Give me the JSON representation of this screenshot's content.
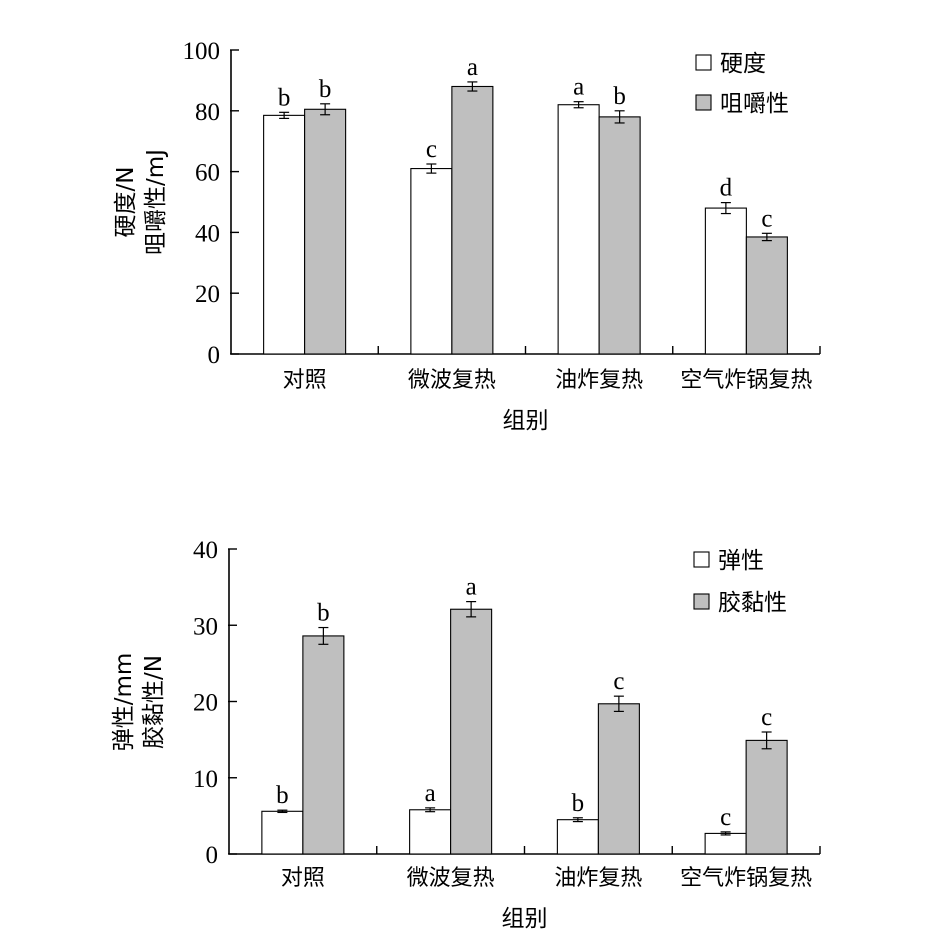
{
  "chart_data": [
    {
      "type": "bar",
      "categories": [
        "对照",
        "微波复热",
        "油炸复热",
        "空气炸锅复热"
      ],
      "xlabel": "组别",
      "ylabel": [
        "硬度/N",
        "咀嚼性/mJ"
      ],
      "ylim": [
        0,
        100
      ],
      "yticks": [
        0,
        20,
        40,
        60,
        80,
        100
      ],
      "legend_position": "top-right",
      "series": [
        {
          "name": "硬度",
          "color": "#ffffff",
          "values": [
            78.5,
            61,
            82,
            48
          ],
          "errors": [
            1,
            1.5,
            1,
            1.8
          ],
          "labels": [
            "b",
            "c",
            "a",
            "d"
          ]
        },
        {
          "name": "咀嚼性",
          "color": "#bfbfbf",
          "values": [
            80.5,
            88,
            78,
            38.5
          ],
          "errors": [
            1.8,
            1.5,
            2,
            1.2
          ],
          "labels": [
            "b",
            "a",
            "b",
            "c"
          ]
        }
      ]
    },
    {
      "type": "bar",
      "categories": [
        "对照",
        "微波复热",
        "油炸复热",
        "空气炸锅复热"
      ],
      "xlabel": "组别",
      "ylabel": [
        "弹性/mm",
        "胶黏性/N"
      ],
      "ylim": [
        0,
        40
      ],
      "yticks": [
        0,
        10,
        20,
        30,
        40
      ],
      "legend_position": "top-right",
      "series": [
        {
          "name": "弹性",
          "color": "#ffffff",
          "values": [
            5.6,
            5.8,
            4.5,
            2.7
          ],
          "errors": [
            0.15,
            0.25,
            0.25,
            0.2
          ],
          "labels": [
            "b",
            "a",
            "b",
            "c"
          ]
        },
        {
          "name": "胶黏性",
          "color": "#bfbfbf",
          "values": [
            28.6,
            32.1,
            19.7,
            14.9
          ],
          "errors": [
            1.1,
            1.0,
            1.0,
            1.1
          ],
          "labels": [
            "b",
            "a",
            "c",
            "c"
          ]
        }
      ]
    }
  ]
}
